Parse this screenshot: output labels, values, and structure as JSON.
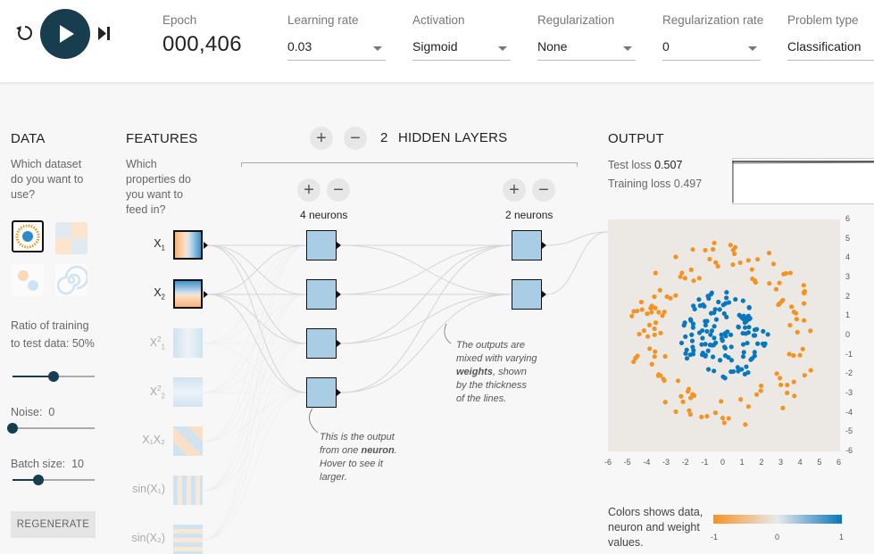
{
  "topbar": {
    "epoch_label": "Epoch",
    "epoch_value": "000,406",
    "learning_rate": {
      "label": "Learning rate",
      "value": "0.03"
    },
    "activation": {
      "label": "Activation",
      "value": "Sigmoid"
    },
    "regularization": {
      "label": "Regularization",
      "value": "None"
    },
    "regularization_rate": {
      "label": "Regularization rate",
      "value": "0"
    },
    "problem_type": {
      "label": "Problem type",
      "value": "Classification"
    }
  },
  "data": {
    "title": "DATA",
    "question": "Which dataset do you want to use?",
    "ratio_label": "Ratio of training to test data:",
    "ratio_value": "50%",
    "ratio_fraction": 0.5,
    "noise_label": "Noise:",
    "noise_value": "0",
    "noise_fraction": 0,
    "batch_label": "Batch size:",
    "batch_value": "10",
    "batch_fraction": 0.32,
    "regenerate_label": "REGENERATE"
  },
  "features": {
    "title": "FEATURES",
    "question": "Which properties do you want to feed in?",
    "items": [
      {
        "label": "X",
        "sub": "1",
        "sup": "",
        "on": true
      },
      {
        "label": "X",
        "sub": "2",
        "sup": "",
        "on": true
      },
      {
        "label": "X",
        "sub": "1",
        "sup": "2",
        "on": false
      },
      {
        "label": "X",
        "sub": "2",
        "sup": "2",
        "on": false
      },
      {
        "label": "X₁X₂",
        "sub": "",
        "sup": "",
        "on": false
      },
      {
        "label": "sin(X₁)",
        "sub": "",
        "sup": "",
        "on": false
      },
      {
        "label": "sin(X₂)",
        "sub": "",
        "sup": "",
        "on": false
      }
    ]
  },
  "network": {
    "hidden_layers_count": "2",
    "hidden_layers_label": "HIDDEN LAYERS",
    "layers": [
      {
        "neurons_label": "4 neurons",
        "count": 4
      },
      {
        "neurons_label": "2 neurons",
        "count": 2
      }
    ],
    "note_neuron": [
      "This is the output",
      "from one ",
      "neuron",
      ". Hover to see it",
      "larger."
    ],
    "note_weights": [
      "The outputs are",
      "mixed with varying",
      "weights",
      ", shown",
      "by the thickness",
      "of the lines."
    ]
  },
  "output": {
    "title": "OUTPUT",
    "test_loss_label": "Test loss",
    "test_loss_value": "0.507",
    "training_loss_label": "Training loss",
    "training_loss_value": "0.497",
    "axis_ticks": [
      "-6",
      "-5",
      "-4",
      "-3",
      "-2",
      "-1",
      "0",
      "1",
      "2",
      "3",
      "4",
      "5",
      "6"
    ],
    "legend_text": "Colors shows data, neuron and weight values.",
    "legend_ticks": [
      "-1",
      "0",
      "1"
    ],
    "color_negative": "#f59322",
    "color_positive": "#0877bd"
  },
  "icons": {
    "reset": "reset-icon",
    "play": "play-icon",
    "step": "step-forward-icon"
  }
}
